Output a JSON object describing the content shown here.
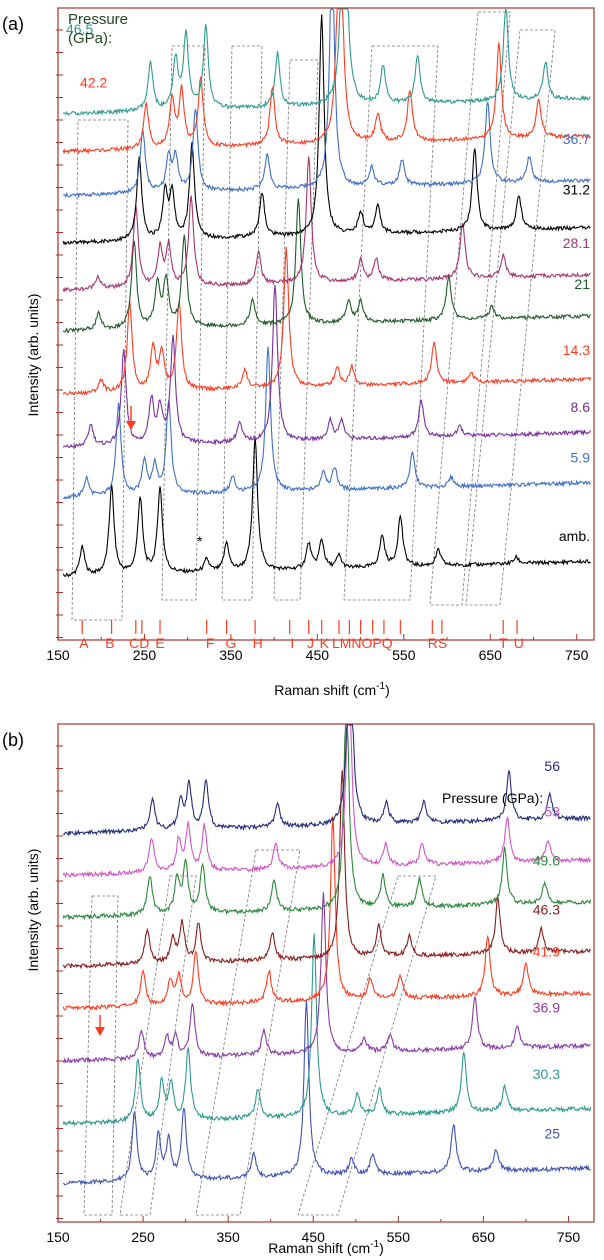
{
  "chart_data": [
    {
      "type": "line",
      "panel_label": "(a)",
      "xlabel": "Raman shift (cm",
      "xlabel_sup": "-1",
      "xlabel_end": ")",
      "ylabel": "Intensity (arb. units)",
      "legend_title_line1": "Pressure",
      "legend_title_line2": "(GPa):",
      "xlim": [
        150,
        770
      ],
      "x_ticks": [
        "150",
        "250",
        "350",
        "450",
        "550",
        "650",
        "750"
      ],
      "x_tick_values": [
        150,
        250,
        350,
        450,
        550,
        650,
        750
      ],
      "series": [
        {
          "name": "amb.",
          "color": "#000000",
          "baseline": 1.0,
          "peaks": [
            [
              178,
              0.45
            ],
            [
              212,
              1.4
            ],
            [
              245,
              1.2
            ],
            [
              268,
              1.35
            ],
            [
              322,
              0.2
            ],
            [
              345,
              0.45
            ],
            [
              378,
              2.1
            ],
            [
              440,
              0.4
            ],
            [
              455,
              0.45
            ],
            [
              475,
              0.2
            ],
            [
              525,
              0.5
            ],
            [
              546,
              0.8
            ],
            [
              590,
              0.25
            ],
            [
              680,
              0.1
            ]
          ]
        },
        {
          "name": "5.9",
          "color": "#3f6fc6",
          "baseline": 2.25,
          "peaks": [
            [
              183,
              0.3
            ],
            [
              220,
              1.45
            ],
            [
              250,
              0.55
            ],
            [
              262,
              0.45
            ],
            [
              278,
              1.5
            ],
            [
              352,
              0.25
            ],
            [
              393,
              2.3
            ],
            [
              457,
              0.3
            ],
            [
              470,
              0.35
            ],
            [
              560,
              0.55
            ],
            [
              605,
              0.15
            ]
          ]
        },
        {
          "name": "8.6",
          "color": "#7a2e9f",
          "baseline": 3.05,
          "peaks": [
            [
              188,
              0.35
            ],
            [
              226,
              1.5
            ],
            [
              258,
              0.7
            ],
            [
              268,
              0.55
            ],
            [
              283,
              1.7
            ],
            [
              360,
              0.3
            ],
            [
              401,
              2.5
            ],
            [
              465,
              0.3
            ],
            [
              478,
              0.3
            ],
            [
              570,
              0.6
            ],
            [
              615,
              0.15
            ]
          ]
        },
        {
          "name": "14.3",
          "color": "#ff3b1f",
          "baseline": 3.9,
          "peaks": [
            [
              200,
              0.2
            ],
            [
              233,
              1.4
            ],
            [
              260,
              0.7
            ],
            [
              270,
              0.6
            ],
            [
              290,
              1.4
            ],
            [
              366,
              0.3
            ],
            [
              414,
              2.2
            ],
            [
              473,
              0.3
            ],
            [
              490,
              0.3
            ],
            [
              585,
              0.65
            ],
            [
              628,
              0.15
            ]
          ]
        },
        {
          "name": "21",
          "color": "#1f5a2a",
          "baseline": 4.9,
          "peaks": [
            [
              197,
              0.25
            ],
            [
              238,
              1.4
            ],
            [
              265,
              0.7
            ],
            [
              275,
              0.75
            ],
            [
              296,
              1.45
            ],
            [
              375,
              0.4
            ],
            [
              428,
              2.0
            ],
            [
              486,
              0.35
            ],
            [
              500,
              0.35
            ],
            [
              602,
              0.7
            ],
            [
              652,
              0.2
            ]
          ]
        },
        {
          "name": "28.1",
          "color": "#a8336f",
          "baseline": 5.55,
          "peaks": [
            [
              196,
              0.2
            ],
            [
              240,
              1.3
            ],
            [
              268,
              0.6
            ],
            [
              278,
              0.65
            ],
            [
              304,
              1.4
            ],
            [
              382,
              0.5
            ],
            [
              440,
              2.0
            ],
            [
              500,
              0.35
            ],
            [
              518,
              0.35
            ],
            [
              618,
              0.9
            ],
            [
              665,
              0.35
            ]
          ]
        },
        {
          "name": "31.2",
          "color": "#000000",
          "baseline": 6.3,
          "peaks": [
            [
              244,
              1.3
            ],
            [
              274,
              0.75
            ],
            [
              282,
              0.7
            ],
            [
              305,
              1.5
            ],
            [
              386,
              0.7
            ],
            [
              455,
              3.5
            ],
            [
              500,
              0.35
            ],
            [
              520,
              0.45
            ],
            [
              632,
              1.3
            ],
            [
              683,
              0.55
            ]
          ]
        },
        {
          "name": "36.7",
          "color": "#3f6fc6",
          "baseline": 7.05,
          "peaks": [
            [
              248,
              1.0
            ],
            [
              278,
              0.55
            ],
            [
              286,
              0.55
            ],
            [
              309,
              1.3
            ],
            [
              392,
              0.55
            ],
            [
              467,
              3.8
            ],
            [
              513,
              0.3
            ],
            [
              548,
              0.4
            ],
            [
              647,
              1.3
            ],
            [
              695,
              0.4
            ]
          ]
        },
        {
          "name": "42.2",
          "color": "#ff3b1f",
          "baseline": 7.75,
          "peaks": [
            [
              252,
              0.7
            ],
            [
              282,
              0.75
            ],
            [
              293,
              0.9
            ],
            [
              315,
              1.1
            ],
            [
              398,
              0.9
            ],
            [
              476,
              4.5
            ],
            [
              520,
              0.45
            ],
            [
              557,
              0.8
            ],
            [
              660,
              1.5
            ],
            [
              706,
              0.6
            ]
          ]
        },
        {
          "name": "46.5",
          "color": "#2e9a8f",
          "baseline": 8.35,
          "peaks": [
            [
              257,
              0.75
            ],
            [
              286,
              0.8
            ],
            [
              298,
              1.2
            ],
            [
              321,
              1.3
            ],
            [
              404,
              0.85
            ],
            [
              481,
              4.6
            ],
            [
              526,
              0.6
            ],
            [
              566,
              0.75
            ],
            [
              668,
              1.5
            ],
            [
              714,
              0.6
            ]
          ]
        }
      ],
      "peak_labels": [
        "A",
        "B",
        "C",
        "D",
        "E",
        "F",
        "G",
        "H",
        "I",
        "J",
        "K",
        "L",
        "M",
        "N",
        "O",
        "P",
        "Q",
        "R",
        "S",
        "T",
        "U"
      ],
      "peak_positions": [
        178,
        212,
        240,
        247,
        268,
        322,
        345,
        378,
        418,
        440,
        455,
        475,
        487,
        500,
        514,
        527,
        546,
        583,
        594,
        665,
        681
      ],
      "peak_label_text": [
        "A",
        "B",
        "CD",
        "E",
        "F",
        "G",
        "H",
        "I",
        "J",
        "K",
        "LMNOPQ",
        "RS",
        "T",
        "U"
      ],
      "peak_label_x": [
        180,
        210,
        244,
        268,
        326,
        350,
        381,
        421,
        442,
        458,
        502,
        589,
        665,
        683
      ],
      "asterisk": "*",
      "asterisk_x": 316
    },
    {
      "type": "line",
      "panel_label": "(b)",
      "xlabel": "Raman shift (cm",
      "xlabel_sup": "-1",
      "xlabel_end": ")",
      "ylabel": "Intensity (arb. units)",
      "legend_title": "Pressure (GPa):",
      "xlim": [
        150,
        780
      ],
      "x_ticks": [
        "150",
        "250",
        "350",
        "450",
        "550",
        "650",
        "750"
      ],
      "x_tick_values": [
        150,
        250,
        350,
        450,
        550,
        650,
        750
      ],
      "series": [
        {
          "name": "25",
          "color": "#3f52b8",
          "baseline": 0.55,
          "peaks": [
            [
              240,
              1.0
            ],
            [
              268,
              0.65
            ],
            [
              280,
              0.55
            ],
            [
              298,
              1.0
            ],
            [
              380,
              0.35
            ],
            [
              442,
              2.5
            ],
            [
              495,
              0.25
            ],
            [
              520,
              0.3
            ],
            [
              615,
              0.7
            ],
            [
              665,
              0.3
            ]
          ]
        },
        {
          "name": "30.3",
          "color": "#2e9a8f",
          "baseline": 1.4,
          "peaks": [
            [
              244,
              0.9
            ],
            [
              272,
              0.55
            ],
            [
              283,
              0.5
            ],
            [
              303,
              1.0
            ],
            [
              385,
              0.4
            ],
            [
              451,
              2.6
            ],
            [
              502,
              0.3
            ],
            [
              528,
              0.35
            ],
            [
              627,
              0.85
            ],
            [
              675,
              0.35
            ]
          ]
        },
        {
          "name": "36.9",
          "color": "#8a3aa8",
          "baseline": 2.3,
          "peaks": [
            [
              248,
              0.4
            ],
            [
              278,
              0.3
            ],
            [
              288,
              0.3
            ],
            [
              308,
              0.75
            ],
            [
              392,
              0.35
            ],
            [
              462,
              2.3
            ],
            [
              510,
              0.2
            ],
            [
              540,
              0.25
            ],
            [
              640,
              0.75
            ],
            [
              690,
              0.3
            ]
          ]
        },
        {
          "name": "41.9",
          "color": "#ff3b1f",
          "baseline": 3.05,
          "peaks": [
            [
              250,
              0.5
            ],
            [
              282,
              0.35
            ],
            [
              292,
              0.4
            ],
            [
              312,
              0.75
            ],
            [
              398,
              0.45
            ],
            [
              473,
              2.6
            ],
            [
              517,
              0.3
            ],
            [
              552,
              0.35
            ],
            [
              655,
              0.85
            ],
            [
              700,
              0.45
            ]
          ]
        },
        {
          "name": "46.3",
          "color": "#8b1a1a",
          "baseline": 3.65,
          "peaks": [
            [
              255,
              0.5
            ],
            [
              285,
              0.35
            ],
            [
              296,
              0.55
            ],
            [
              315,
              0.55
            ],
            [
              402,
              0.4
            ],
            [
              484,
              2.7
            ],
            [
              527,
              0.45
            ],
            [
              563,
              0.3
            ],
            [
              667,
              0.8
            ],
            [
              718,
              0.35
            ]
          ]
        },
        {
          "name": "49.6",
          "color": "#2a8a3a",
          "baseline": 4.35,
          "peaks": [
            [
              258,
              0.55
            ],
            [
              290,
              0.5
            ],
            [
              300,
              0.7
            ],
            [
              320,
              0.7
            ],
            [
              404,
              0.45
            ],
            [
              489,
              3.2
            ],
            [
              532,
              0.45
            ],
            [
              575,
              0.4
            ],
            [
              675,
              0.8
            ],
            [
              722,
              0.3
            ]
          ]
        },
        {
          "name": "53",
          "color": "#d154c4",
          "baseline": 4.95,
          "peaks": [
            [
              260,
              0.5
            ],
            [
              292,
              0.45
            ],
            [
              303,
              0.65
            ],
            [
              322,
              0.65
            ],
            [
              406,
              0.35
            ],
            [
              492,
              3.0
            ],
            [
              535,
              0.3
            ],
            [
              578,
              0.3
            ],
            [
              678,
              0.65
            ],
            [
              726,
              0.3
            ]
          ]
        },
        {
          "name": "56",
          "color": "#252b7a",
          "baseline": 5.55,
          "peaks": [
            [
              261,
              0.45
            ],
            [
              294,
              0.4
            ],
            [
              304,
              0.65
            ],
            [
              324,
              0.7
            ],
            [
              408,
              0.35
            ],
            [
              493,
              3.2
            ],
            [
              536,
              0.3
            ],
            [
              580,
              0.3
            ],
            [
              680,
              0.7
            ],
            [
              728,
              0.35
            ]
          ]
        }
      ]
    }
  ]
}
